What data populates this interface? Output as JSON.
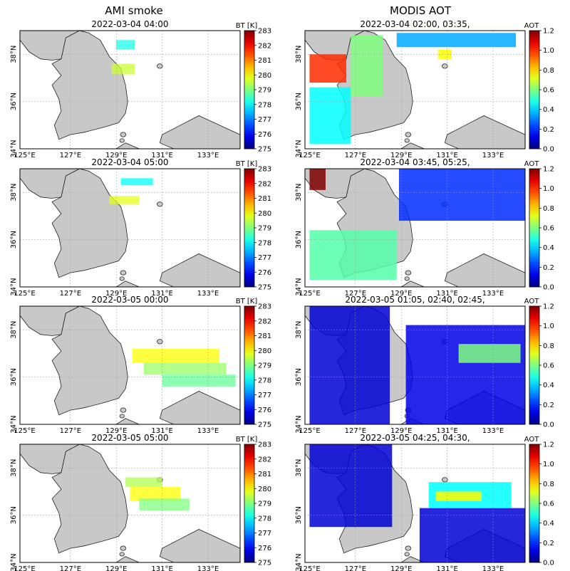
{
  "headers": {
    "left": "AMI smoke",
    "right": "MODIS AOT"
  },
  "colors": {
    "land": "#c8c8c8",
    "grid": "#9a9a9a",
    "frame": "#000000"
  },
  "chart_data": [
    {
      "type": "heatmap",
      "column": "AMI smoke",
      "title": "2022-03-04 04:00",
      "colorbar": {
        "label": "BT [K]",
        "range": [
          275,
          283
        ],
        "ticks": [
          "275",
          "276",
          "277",
          "278",
          "279",
          "280",
          "281",
          "282",
          "283"
        ]
      },
      "xticks": [
        "125°E",
        "127°E",
        "129°E",
        "131°E",
        "133°E"
      ],
      "yticks": [
        "34°N",
        "36°N",
        "38°N"
      ],
      "plumes": [
        {
          "lon": [
            128.8,
            129.8
          ],
          "lat": [
            37.15,
            37.6
          ],
          "value": 279.6
        },
        {
          "lon": [
            129.0,
            129.8
          ],
          "lat": [
            38.2,
            38.6
          ],
          "value": 278.2
        }
      ]
    },
    {
      "type": "heatmap",
      "column": "AMI smoke",
      "title": "2022-03-04 05:00",
      "colorbar": {
        "label": "BT [K]",
        "range": [
          275,
          283
        ],
        "ticks": [
          "275",
          "276",
          "277",
          "278",
          "279",
          "280",
          "281",
          "282",
          "283"
        ]
      },
      "xticks": [
        "125°E",
        "127°E",
        "129°E",
        "131°E",
        "133°E"
      ],
      "yticks": [
        "34°N",
        "36°N",
        "38°N"
      ],
      "plumes": [
        {
          "lon": [
            128.7,
            130.0
          ],
          "lat": [
            37.5,
            37.85
          ],
          "value": 279.8
        },
        {
          "lon": [
            129.2,
            130.6
          ],
          "lat": [
            38.3,
            38.6
          ],
          "value": 278.0
        }
      ]
    },
    {
      "type": "heatmap",
      "column": "AMI smoke",
      "title": "2022-03-05 00:00",
      "colorbar": {
        "label": "BT [K]",
        "range": [
          275,
          283
        ],
        "ticks": [
          "275",
          "276",
          "277",
          "278",
          "279",
          "280",
          "281",
          "282",
          "283"
        ]
      },
      "xticks": [
        "125°E",
        "127°E",
        "129°E",
        "131°E",
        "133°E"
      ],
      "yticks": [
        "34°N",
        "36°N",
        "38°N"
      ],
      "plumes": [
        {
          "lon": [
            129.7,
            133.5
          ],
          "lat": [
            36.6,
            37.2
          ],
          "value": 280.0
        },
        {
          "lon": [
            130.2,
            133.8
          ],
          "lat": [
            36.1,
            36.6
          ],
          "value": 279.2
        },
        {
          "lon": [
            131.0,
            134.2
          ],
          "lat": [
            35.6,
            36.1
          ],
          "value": 278.8
        }
      ]
    },
    {
      "type": "heatmap",
      "column": "AMI smoke",
      "title": "2022-03-05 05:00",
      "colorbar": {
        "label": "BT [K]",
        "range": [
          275,
          283
        ],
        "ticks": [
          "275",
          "276",
          "277",
          "278",
          "279",
          "280",
          "281",
          "282",
          "283"
        ]
      },
      "xticks": [
        "125°E",
        "127°E",
        "129°E",
        "131°E",
        "133°E"
      ],
      "yticks": [
        "34°N",
        "36°N",
        "38°N"
      ],
      "plumes": [
        {
          "lon": [
            129.4,
            131.0
          ],
          "lat": [
            37.2,
            37.6
          ],
          "value": 279.4
        },
        {
          "lon": [
            129.6,
            131.8
          ],
          "lat": [
            36.6,
            37.2
          ],
          "value": 280.0
        },
        {
          "lon": [
            130.0,
            132.2
          ],
          "lat": [
            36.2,
            36.7
          ],
          "value": 279.0
        }
      ]
    },
    {
      "type": "heatmap",
      "column": "MODIS AOT",
      "title": "2022-03-04 02:00, 03:35,",
      "colorbar": {
        "label": "AOT",
        "range": [
          0,
          1.2
        ],
        "ticks": [
          "0.0",
          "0.2",
          "0.4",
          "0.6",
          "0.8",
          "1.0",
          "1.2"
        ]
      },
      "xticks": [
        "125°E",
        "127°E",
        "129°E",
        "131°E",
        "133°E"
      ],
      "yticks": [
        "34°N",
        "36°N",
        "38°N"
      ],
      "plumes": [
        {
          "lon": [
            125.0,
            126.6
          ],
          "lat": [
            36.8,
            38.0
          ],
          "value": 1.0
        },
        {
          "lon": [
            125.0,
            126.8
          ],
          "lat": [
            34.2,
            36.6
          ],
          "value": 0.45
        },
        {
          "lon": [
            126.8,
            128.2
          ],
          "lat": [
            36.2,
            38.8
          ],
          "value": 0.6
        },
        {
          "lon": [
            128.8,
            134.0
          ],
          "lat": [
            38.3,
            38.9
          ],
          "value": 0.35
        },
        {
          "lon": [
            130.6,
            131.2
          ],
          "lat": [
            37.8,
            38.2
          ],
          "value": 0.75
        }
      ]
    },
    {
      "type": "heatmap",
      "column": "MODIS AOT",
      "title": "2022-03-04 03:45, 05:25,",
      "colorbar": {
        "label": "AOT",
        "range": [
          0,
          1.2
        ],
        "ticks": [
          "0.0",
          "0.2",
          "0.4",
          "0.6",
          "0.8",
          "1.0",
          "1.2"
        ]
      },
      "xticks": [
        "125°E",
        "127°E",
        "129°E",
        "131°E",
        "133°E"
      ],
      "yticks": [
        "34°N",
        "36°N",
        "38°N"
      ],
      "plumes": [
        {
          "lon": [
            125.0,
            125.7
          ],
          "lat": [
            38.1,
            39.0
          ],
          "value": 1.2
        },
        {
          "lon": [
            125.0,
            128.8
          ],
          "lat": [
            34.3,
            36.4
          ],
          "value": 0.55
        },
        {
          "lon": [
            128.9,
            134.4
          ],
          "lat": [
            36.8,
            39.0
          ],
          "value": 0.2
        }
      ]
    },
    {
      "type": "heatmap",
      "column": "MODIS AOT",
      "title": "2022-03-05 01:05, 02:40, 02:45,",
      "colorbar": {
        "label": "AOT",
        "range": [
          0,
          1.2
        ],
        "ticks": [
          "0.0",
          "0.2",
          "0.4",
          "0.6",
          "0.8",
          "1.0",
          "1.2"
        ]
      },
      "xticks": [
        "125°E",
        "127°E",
        "129°E",
        "131°E",
        "133°E"
      ],
      "yticks": [
        "34°N",
        "36°N",
        "38°N"
      ],
      "plumes": [
        {
          "lon": [
            125.0,
            128.5
          ],
          "lat": [
            34.0,
            39.0
          ],
          "value": 0.1
        },
        {
          "lon": [
            129.2,
            134.4
          ],
          "lat": [
            34.0,
            38.2
          ],
          "value": 0.12
        },
        {
          "lon": [
            131.5,
            134.2
          ],
          "lat": [
            36.6,
            37.4
          ],
          "value": 0.6
        }
      ]
    },
    {
      "type": "heatmap",
      "column": "MODIS AOT",
      "title": "2022-03-05 04:25, 04:30,",
      "colorbar": {
        "label": "AOT",
        "range": [
          0,
          1.2
        ],
        "ticks": [
          "0.0",
          "0.2",
          "0.4",
          "0.6",
          "0.8",
          "1.0",
          "1.2"
        ]
      },
      "xticks": [
        "125°E",
        "127°E",
        "129°E",
        "131°E",
        "133°E"
      ],
      "yticks": [
        "34°N",
        "36°N",
        "38°N"
      ],
      "plumes": [
        {
          "lon": [
            125.0,
            128.6
          ],
          "lat": [
            35.5,
            39.0
          ],
          "value": 0.1
        },
        {
          "lon": [
            129.8,
            134.4
          ],
          "lat": [
            34.0,
            36.3
          ],
          "value": 0.1
        },
        {
          "lon": [
            130.2,
            133.8
          ],
          "lat": [
            36.3,
            37.4
          ],
          "value": 0.45
        },
        {
          "lon": [
            130.5,
            132.5
          ],
          "lat": [
            36.6,
            37.0
          ],
          "value": 0.75
        }
      ]
    }
  ]
}
